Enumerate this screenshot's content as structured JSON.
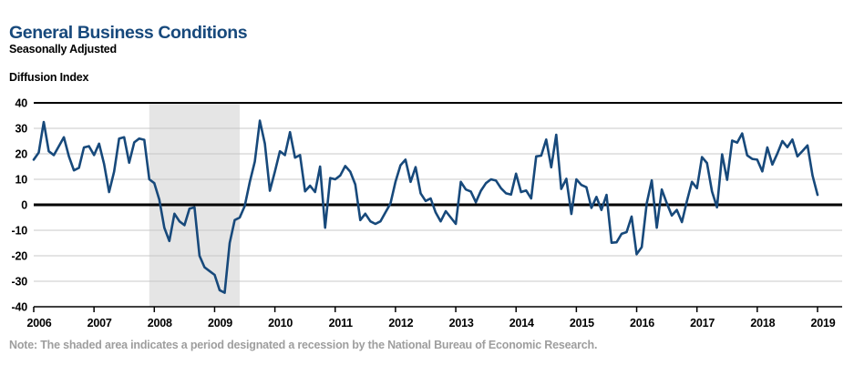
{
  "header": {
    "title": "General Business Conditions",
    "subtitle": "Seasonally Adjusted"
  },
  "note": "Note: The shaded area indicates a period designated a recession by the National Bureau of Economic Research.",
  "colors": {
    "title": "#17497C",
    "line": "#17497B",
    "grid": "#C8C8C8",
    "axis": "#000000",
    "recession_band": "#E5E5E5",
    "note_text": "#9E9E9E"
  },
  "chart_data": {
    "type": "line",
    "title": "General Business Conditions",
    "subtitle": "Seasonally Adjusted",
    "ylabel": "Diffusion Index",
    "xlabel": "",
    "frequency": "monthly",
    "x_start": "2006-01",
    "x_end": "2019-01",
    "ylim": [
      -40,
      40
    ],
    "ytick_step": 10,
    "ytick_labels": [
      "40",
      "30",
      "20",
      "10",
      "0",
      "-10",
      "-20",
      "-30",
      "-40"
    ],
    "xtick_labels": [
      "2006",
      "2007",
      "2008",
      "2009",
      "2010",
      "2011",
      "2012",
      "2013",
      "2014",
      "2015",
      "2016",
      "2017",
      "2018",
      "2019"
    ],
    "grid": true,
    "legend": "none",
    "recession_shading": {
      "start": "2007-12",
      "end": "2009-06"
    },
    "series_name": "General Business Conditions (diffusion index, seasonally adjusted)",
    "values": [
      17.7,
      20.5,
      32.5,
      21.0,
      19.5,
      23.0,
      26.5,
      19.0,
      13.5,
      14.5,
      22.5,
      23.0,
      19.5,
      24.0,
      16.0,
      5.0,
      13.0,
      26.0,
      26.5,
      16.5,
      24.5,
      26.0,
      25.5,
      10.0,
      8.5,
      2.0,
      -9.0,
      -14.2,
      -3.5,
      -6.5,
      -8.0,
      -1.5,
      -1.0,
      -20.0,
      -24.5,
      -26.0,
      -27.5,
      -33.5,
      -34.5,
      -15.0,
      -6.0,
      -5.0,
      -0.5,
      9.0,
      17.0,
      33.0,
      24.0,
      5.5,
      13.0,
      21.0,
      19.5,
      28.5,
      18.5,
      19.5,
      5.3,
      7.5,
      5.0,
      15.0,
      -9.0,
      10.5,
      10.0,
      11.5,
      15.2,
      13.0,
      8.0,
      -6.0,
      -3.5,
      -6.5,
      -7.5,
      -6.5,
      -3.0,
      0.5,
      9.0,
      15.5,
      17.7,
      9.0,
      14.8,
      4.5,
      1.5,
      2.5,
      -3.0,
      -6.5,
      -2.5,
      -5.0,
      -7.5,
      9.0,
      6.0,
      5.2,
      1.0,
      5.5,
      8.5,
      10.0,
      9.5,
      6.5,
      4.5,
      4.0,
      12.2,
      5.0,
      5.6,
      2.5,
      19.0,
      19.3,
      25.6,
      14.7,
      27.5,
      6.2,
      10.2,
      -3.6,
      10.0,
      7.8,
      6.9,
      -1.2,
      3.1,
      -2.0,
      3.9,
      -14.9,
      -14.7,
      -11.4,
      -10.7,
      -4.6,
      -19.4,
      -16.6,
      0.6,
      9.6,
      -9.0,
      6.0,
      0.6,
      -4.2,
      -2.0,
      -6.8,
      1.5,
      9.0,
      6.5,
      18.7,
      16.4,
      5.2,
      -1.0,
      19.8,
      9.8,
      25.2,
      24.4,
      28.0,
      19.4,
      18.0,
      17.7,
      13.1,
      22.5,
      15.8,
      20.1,
      25.0,
      22.6,
      25.6,
      19.0,
      21.1,
      23.3,
      11.5,
      3.9
    ]
  }
}
